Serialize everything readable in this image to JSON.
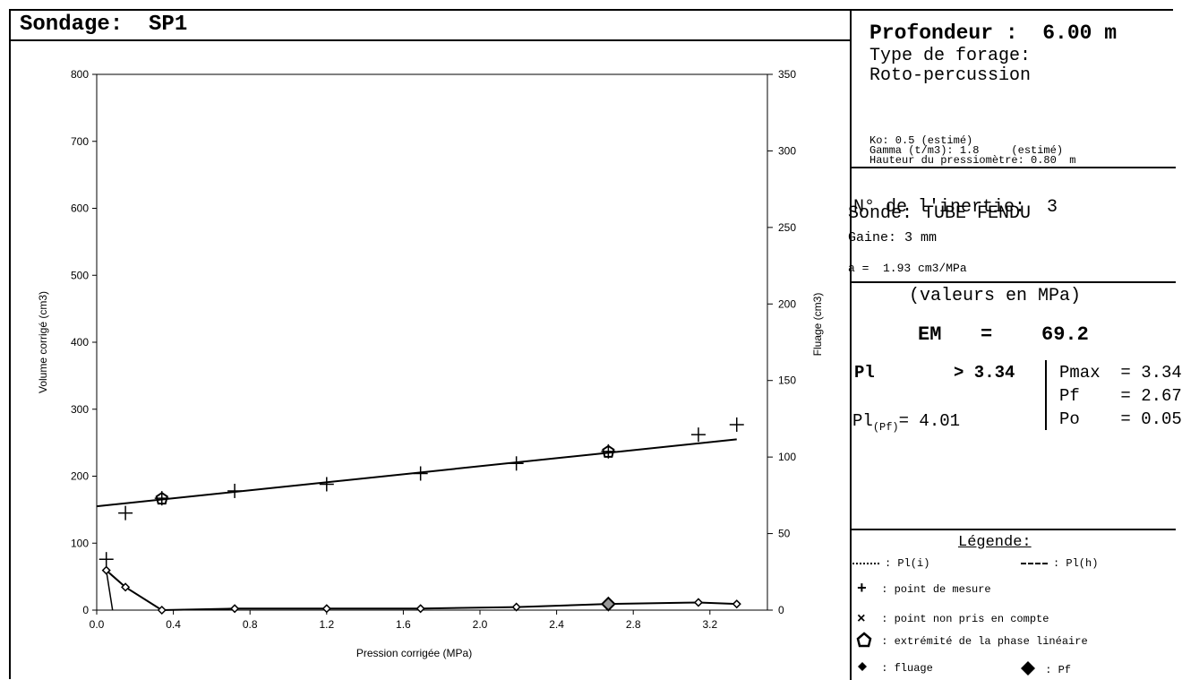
{
  "header": {
    "label": "Sondage:",
    "value": "SP1"
  },
  "panel": {
    "depth_label": "Profondeur :",
    "depth_value": "6.00 m",
    "drill_type_label": "Type de forage:",
    "drill_type_value": "Roto-percussion",
    "ko": "Ko: 0.5 (estimé)",
    "gamma": "Gamma (t/m3): 1.8     (estimé)",
    "height": "Hauteur du pressiomètre: 0.80  m",
    "inertia": "N° de l'inertie:  3",
    "probe": "Sonde: TUBE FENDU",
    "sheath": "Gaine: 3 mm",
    "a_value": "a =  1.93 cm3/MPa",
    "units": "(valeurs en MPa)",
    "em_label": "EM",
    "em_equals": "=",
    "em_value": "69.2",
    "pl_label": "Pl",
    "pl_value": "> 3.34",
    "pmax": "Pmax  = 3.34",
    "pf": "Pf    = 2.67",
    "po": "Po    = 0.05",
    "pl_pf_label": "Pl",
    "pl_pf_sub": "(Pf)",
    "pl_pf_value": "= 4.01"
  },
  "legend": {
    "title": "Légende:",
    "pl_i": ": Pl(i)",
    "pl_h": ": Pl(h)",
    "mesure": ": point de mesure",
    "non_pris": ": point non pris en compte",
    "extremite": ": extrémité de la phase linéaire",
    "fluage": ": fluage",
    "pf": ": Pf"
  },
  "chart_data": {
    "type": "scatter",
    "xlabel": "Pression corrigée (MPa)",
    "ylabel": "Volume corrigé (cm3)",
    "y2label": "Fluage (cm3)",
    "xlim": [
      0.0,
      3.5
    ],
    "ylim": [
      0,
      800
    ],
    "y2lim": [
      0,
      350
    ],
    "x_ticks": [
      "0.0",
      "0.4",
      "0.8",
      "1.2",
      "1.6",
      "2.0",
      "2.4",
      "2.8",
      "3.2"
    ],
    "y_ticks": [
      "0",
      "100",
      "200",
      "300",
      "400",
      "500",
      "600",
      "700",
      "800"
    ],
    "y2_ticks": [
      "0",
      "50",
      "100",
      "150",
      "200",
      "250",
      "300",
      "350"
    ],
    "series": [
      {
        "name": "point de mesure",
        "marker": "plus",
        "x": [
          0.05,
          0.15,
          0.34,
          0.72,
          1.2,
          1.69,
          2.19,
          2.67,
          3.14,
          3.34
        ],
        "y": [
          76,
          145,
          167,
          178,
          188,
          204,
          219,
          237,
          262,
          277
        ]
      },
      {
        "name": "fluage",
        "marker": "diamond",
        "axis": "y2",
        "x": [
          0.05,
          0.15,
          0.34,
          0.72,
          1.2,
          1.69,
          2.19,
          2.67,
          3.14,
          3.34
        ],
        "y": [
          26,
          15,
          0,
          1,
          1,
          1,
          2,
          4,
          5,
          4
        ]
      }
    ],
    "regression_line": {
      "x": [
        0.0,
        3.34
      ],
      "y": [
        155,
        255
      ]
    },
    "linear_phase_ends": {
      "x": [
        0.34,
        2.67
      ],
      "y": [
        167,
        237
      ]
    },
    "pf_marker": {
      "x": 2.67,
      "y2": 4
    },
    "fluage_line_start": {
      "x": 0.05,
      "y2": 26
    }
  }
}
